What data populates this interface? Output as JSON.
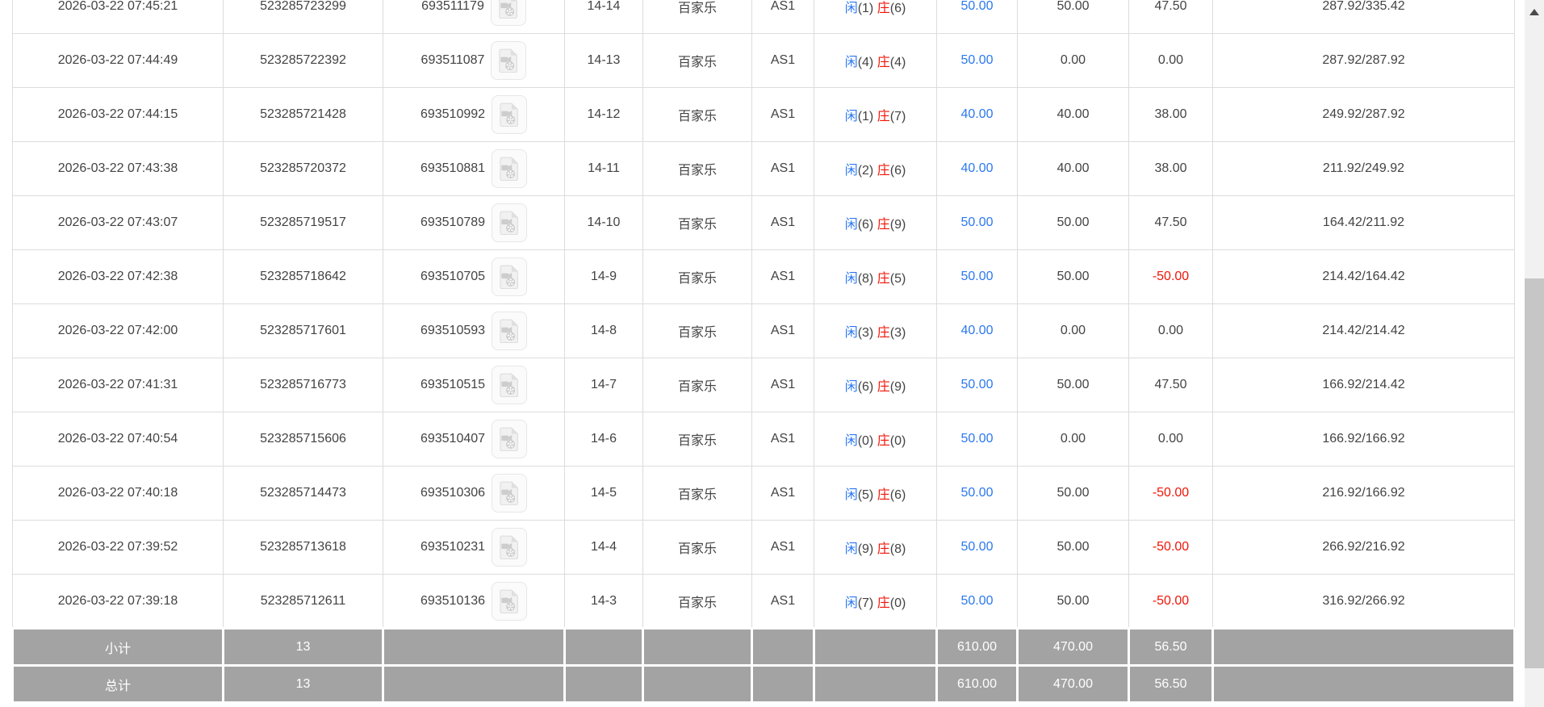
{
  "colors": {
    "blue": "#2b78f0",
    "red": "#f01508",
    "text": "#434343",
    "border": "#dcdcdc",
    "summary_bg": "#a3a3a3",
    "scroll_track": "#f1f1f1",
    "scroll_thumb": "#c6c6c6"
  },
  "table": {
    "rows": [
      {
        "time": "2026-03-22 07:45:21",
        "order_no": "523285723299",
        "game_no": "693511179",
        "round": "14-14",
        "game_type": "百家乐",
        "table_id": "AS1",
        "player_label": "闲",
        "player_count": "(1)",
        "banker_label": "庄",
        "banker_count": "(6)",
        "bet": "50.00",
        "valid": "50.00",
        "winloss": "47.50",
        "winloss_negative": false,
        "balance": "287.92/335.42"
      },
      {
        "time": "2026-03-22 07:44:49",
        "order_no": "523285722392",
        "game_no": "693511087",
        "round": "14-13",
        "game_type": "百家乐",
        "table_id": "AS1",
        "player_label": "闲",
        "player_count": "(4)",
        "banker_label": "庄",
        "banker_count": "(4)",
        "bet": "50.00",
        "valid": "0.00",
        "winloss": "0.00",
        "winloss_negative": false,
        "balance": "287.92/287.92"
      },
      {
        "time": "2026-03-22 07:44:15",
        "order_no": "523285721428",
        "game_no": "693510992",
        "round": "14-12",
        "game_type": "百家乐",
        "table_id": "AS1",
        "player_label": "闲",
        "player_count": "(1)",
        "banker_label": "庄",
        "banker_count": "(7)",
        "bet": "40.00",
        "valid": "40.00",
        "winloss": "38.00",
        "winloss_negative": false,
        "balance": "249.92/287.92"
      },
      {
        "time": "2026-03-22 07:43:38",
        "order_no": "523285720372",
        "game_no": "693510881",
        "round": "14-11",
        "game_type": "百家乐",
        "table_id": "AS1",
        "player_label": "闲",
        "player_count": "(2)",
        "banker_label": "庄",
        "banker_count": "(6)",
        "bet": "40.00",
        "valid": "40.00",
        "winloss": "38.00",
        "winloss_negative": false,
        "balance": "211.92/249.92"
      },
      {
        "time": "2026-03-22 07:43:07",
        "order_no": "523285719517",
        "game_no": "693510789",
        "round": "14-10",
        "game_type": "百家乐",
        "table_id": "AS1",
        "player_label": "闲",
        "player_count": "(6)",
        "banker_label": "庄",
        "banker_count": "(9)",
        "bet": "50.00",
        "valid": "50.00",
        "winloss": "47.50",
        "winloss_negative": false,
        "balance": "164.42/211.92"
      },
      {
        "time": "2026-03-22 07:42:38",
        "order_no": "523285718642",
        "game_no": "693510705",
        "round": "14-9",
        "game_type": "百家乐",
        "table_id": "AS1",
        "player_label": "闲",
        "player_count": "(8)",
        "banker_label": "庄",
        "banker_count": "(5)",
        "bet": "50.00",
        "valid": "50.00",
        "winloss": "-50.00",
        "winloss_negative": true,
        "balance": "214.42/164.42"
      },
      {
        "time": "2026-03-22 07:42:00",
        "order_no": "523285717601",
        "game_no": "693510593",
        "round": "14-8",
        "game_type": "百家乐",
        "table_id": "AS1",
        "player_label": "闲",
        "player_count": "(3)",
        "banker_label": "庄",
        "banker_count": "(3)",
        "bet": "40.00",
        "valid": "0.00",
        "winloss": "0.00",
        "winloss_negative": false,
        "balance": "214.42/214.42"
      },
      {
        "time": "2026-03-22 07:41:31",
        "order_no": "523285716773",
        "game_no": "693510515",
        "round": "14-7",
        "game_type": "百家乐",
        "table_id": "AS1",
        "player_label": "闲",
        "player_count": "(6)",
        "banker_label": "庄",
        "banker_count": "(9)",
        "bet": "50.00",
        "valid": "50.00",
        "winloss": "47.50",
        "winloss_negative": false,
        "balance": "166.92/214.42"
      },
      {
        "time": "2026-03-22 07:40:54",
        "order_no": "523285715606",
        "game_no": "693510407",
        "round": "14-6",
        "game_type": "百家乐",
        "table_id": "AS1",
        "player_label": "闲",
        "player_count": "(0)",
        "banker_label": "庄",
        "banker_count": "(0)",
        "bet": "50.00",
        "valid": "0.00",
        "winloss": "0.00",
        "winloss_negative": false,
        "balance": "166.92/166.92"
      },
      {
        "time": "2026-03-22 07:40:18",
        "order_no": "523285714473",
        "game_no": "693510306",
        "round": "14-5",
        "game_type": "百家乐",
        "table_id": "AS1",
        "player_label": "闲",
        "player_count": "(5)",
        "banker_label": "庄",
        "banker_count": "(6)",
        "bet": "50.00",
        "valid": "50.00",
        "winloss": "-50.00",
        "winloss_negative": true,
        "balance": "216.92/166.92"
      },
      {
        "time": "2026-03-22 07:39:52",
        "order_no": "523285713618",
        "game_no": "693510231",
        "round": "14-4",
        "game_type": "百家乐",
        "table_id": "AS1",
        "player_label": "闲",
        "player_count": "(9)",
        "banker_label": "庄",
        "banker_count": "(8)",
        "bet": "50.00",
        "valid": "50.00",
        "winloss": "-50.00",
        "winloss_negative": true,
        "balance": "266.92/216.92"
      },
      {
        "time": "2026-03-22 07:39:18",
        "order_no": "523285712611",
        "game_no": "693510136",
        "round": "14-3",
        "game_type": "百家乐",
        "table_id": "AS1",
        "player_label": "闲",
        "player_count": "(7)",
        "banker_label": "庄",
        "banker_count": "(0)",
        "bet": "50.00",
        "valid": "50.00",
        "winloss": "-50.00",
        "winloss_negative": true,
        "balance": "316.92/266.92"
      }
    ],
    "summary_rows": [
      {
        "label": "小计",
        "count": "13",
        "bet_total": "610.00",
        "valid_total": "470.00",
        "winloss_total": "56.50"
      },
      {
        "label": "总计",
        "count": "13",
        "bet_total": "610.00",
        "valid_total": "470.00",
        "winloss_total": "56.50"
      }
    ]
  },
  "scrollbar": {
    "up_arrow": "▲"
  }
}
